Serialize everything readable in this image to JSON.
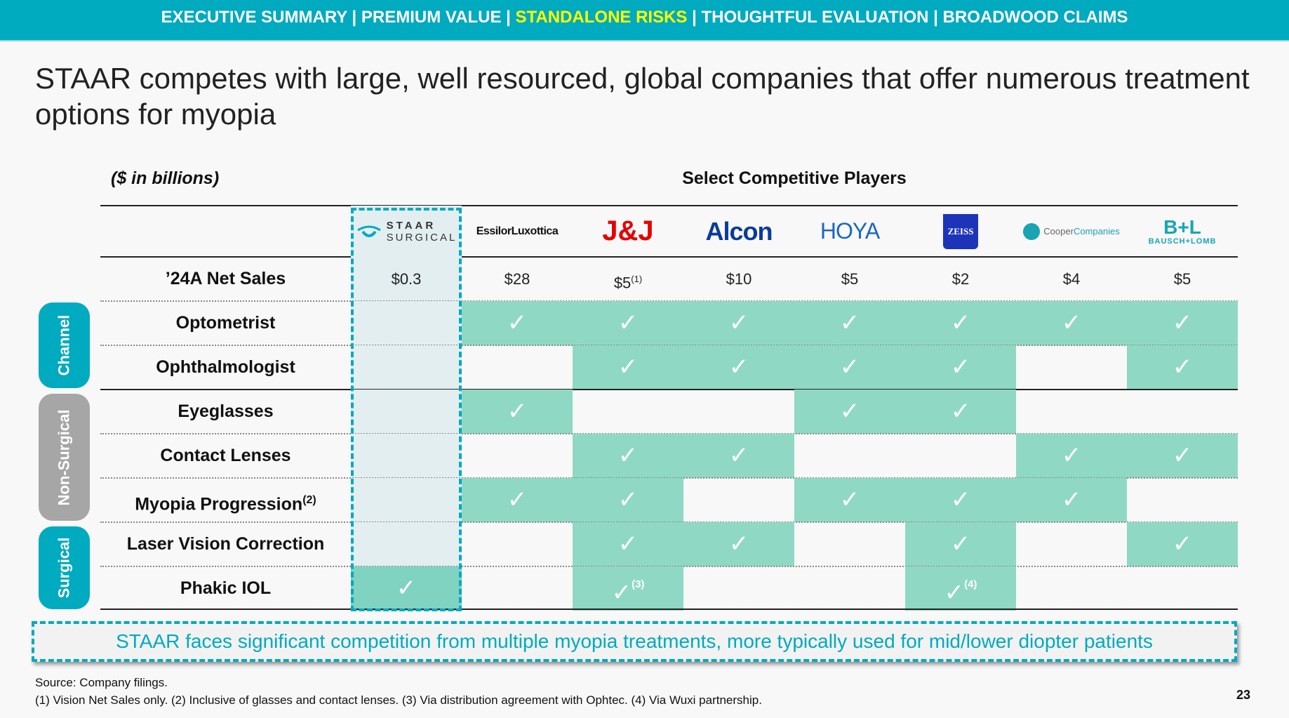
{
  "nav": {
    "items": [
      {
        "label": "EXECUTIVE SUMMARY",
        "active": false
      },
      {
        "label": "PREMIUM VALUE",
        "active": false
      },
      {
        "label": "STANDALONE RISKS",
        "active": true
      },
      {
        "label": "THOUGHTFUL EVALUATION",
        "active": false
      },
      {
        "label": "BROADWOOD CLAIMS",
        "active": false
      }
    ],
    "separator": " | "
  },
  "title": "STAAR competes with large, well resourced, global companies that offer numerous treatment options for myopia",
  "table": {
    "units": "($ in billions)",
    "group_header": "Select Competitive Players",
    "sales_label": "’24A Net Sales",
    "companies": [
      {
        "name": "STAAR SURGICAL",
        "logo_line1": "STAAR",
        "logo_line2": "SURGICAL",
        "sales": "$0.3",
        "sales_note": ""
      },
      {
        "name": "EssilorLuxottica",
        "sales": "$28",
        "sales_note": ""
      },
      {
        "name": "J&J",
        "sales": "$5",
        "sales_note": "(1)"
      },
      {
        "name": "Alcon",
        "sales": "$10",
        "sales_note": ""
      },
      {
        "name": "HOYA",
        "sales": "$5",
        "sales_note": ""
      },
      {
        "name": "ZEISS",
        "sales": "$2",
        "sales_note": ""
      },
      {
        "name": "CooperCompanies",
        "logo_a": "Cooper",
        "logo_b": "Companies",
        "sales": "$4",
        "sales_note": ""
      },
      {
        "name": "Bausch + Lomb",
        "logo_a": "B+L",
        "logo_b": "BAUSCH+LOMB",
        "sales": "$5",
        "sales_note": ""
      }
    ],
    "groups": [
      {
        "label": "Channel",
        "color": "#00aabf",
        "rows": 2
      },
      {
        "label": "Non-Surgical",
        "color": "#a6a6a6",
        "rows": 3
      },
      {
        "label": "Surgical",
        "color": "#00aabf",
        "rows": 2
      }
    ],
    "rows": [
      {
        "label": "Optometrist",
        "sup": "",
        "checks": [
          0,
          1,
          1,
          1,
          1,
          1,
          1,
          1
        ],
        "notes": [
          "",
          "",
          "",
          "",
          "",
          "",
          "",
          ""
        ]
      },
      {
        "label": "Ophthalmologist",
        "sup": "",
        "checks": [
          0,
          0,
          1,
          1,
          1,
          1,
          0,
          1
        ],
        "notes": [
          "",
          "",
          "",
          "",
          "",
          "",
          "",
          ""
        ]
      },
      {
        "label": "Eyeglasses",
        "sup": "",
        "checks": [
          0,
          1,
          0,
          0,
          1,
          1,
          0,
          0
        ],
        "notes": [
          "",
          "",
          "",
          "",
          "",
          "",
          "",
          ""
        ]
      },
      {
        "label": "Contact Lenses",
        "sup": "",
        "checks": [
          0,
          0,
          1,
          1,
          0,
          0,
          1,
          1
        ],
        "notes": [
          "",
          "",
          "",
          "",
          "",
          "",
          "",
          ""
        ]
      },
      {
        "label": "Myopia Progression",
        "sup": "(2)",
        "checks": [
          0,
          1,
          1,
          0,
          1,
          1,
          1,
          0
        ],
        "notes": [
          "",
          "",
          "",
          "",
          "",
          "",
          "",
          ""
        ]
      },
      {
        "label": "Laser Vision Correction",
        "sup": "",
        "checks": [
          0,
          0,
          1,
          1,
          0,
          1,
          0,
          1
        ],
        "notes": [
          "",
          "",
          "",
          "",
          "",
          "",
          "",
          ""
        ]
      },
      {
        "label": "Phakic IOL",
        "sup": "",
        "checks": [
          1,
          0,
          1,
          0,
          0,
          1,
          0,
          0
        ],
        "notes": [
          "",
          "",
          "(3)",
          "",
          "",
          "(4)",
          "",
          ""
        ]
      }
    ],
    "check_glyph": "✓",
    "colors": {
      "check_fill": "#8fd9c4",
      "staar_fill": "#e3eef0",
      "accent": "#00aabf"
    }
  },
  "callout": "STAAR faces significant competition from multiple myopia treatments, more typically used for mid/lower diopter patients",
  "footer": {
    "source": "Source: Company filings.",
    "notes": "(1) Vision Net Sales only. (2) Inclusive of glasses and contact lenses. (3) Via distribution agreement with Ophtec. (4) Via Wuxi partnership.",
    "page": "23"
  }
}
